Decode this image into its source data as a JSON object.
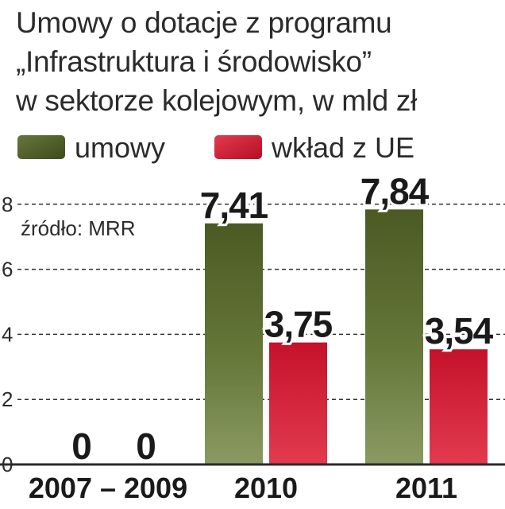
{
  "chart_data": {
    "type": "bar",
    "title": {
      "line1": "Umowy o dotacje z programu",
      "line2": "„Infrastruktura i środowisko”",
      "line3": "w sektorze kolejowym, w mld zł"
    },
    "source": "źródło: MRR",
    "categories": [
      "2007 – 2009",
      "2010",
      "2011"
    ],
    "series": [
      {
        "name": "umowy",
        "values": [
          0,
          7.41,
          7.84
        ],
        "labels": [
          "0",
          "7,41",
          "7,84"
        ],
        "color": "#5a6b2e"
      },
      {
        "name": "wkład z UE",
        "values": [
          0,
          3.75,
          3.54
        ],
        "labels": [
          "0",
          "3,75",
          "3,54"
        ],
        "color": "#d01c30"
      }
    ],
    "yticks": [
      "0",
      "2",
      "4",
      "6",
      "8"
    ],
    "ylim": [
      0,
      8.6
    ],
    "grid": true,
    "legend_position": "top-left"
  }
}
